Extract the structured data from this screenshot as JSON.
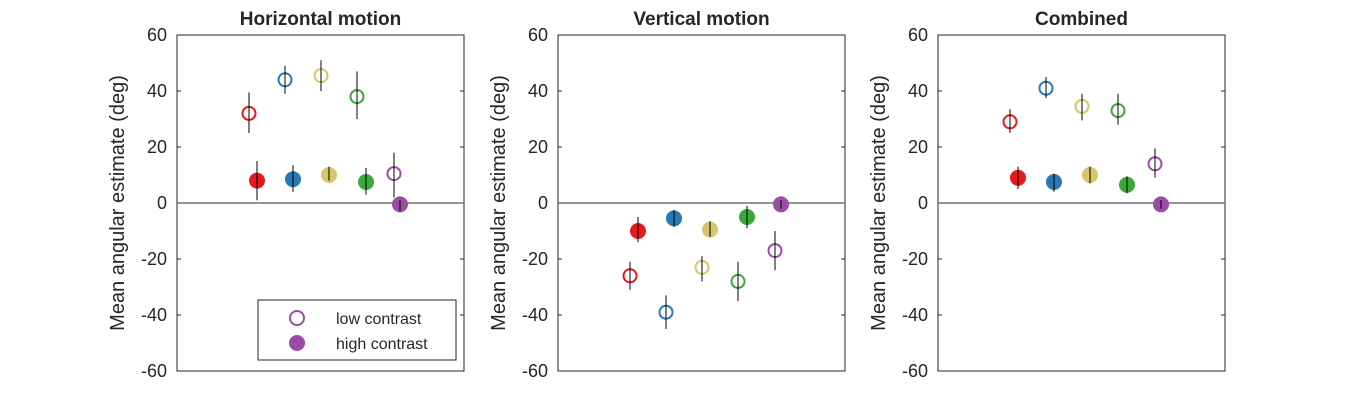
{
  "colors": {
    "red": "#e41a1c",
    "blue": "#2878b5",
    "yellow": "#d4c66a",
    "green": "#3aa83a",
    "purple": "#984ea3",
    "axis": "#262626",
    "zeroline": "#707070"
  },
  "legend": {
    "placement": "bottom-right",
    "low_label": "low contrast",
    "high_label": "high contrast"
  },
  "chart_data": [
    {
      "type": "scatter",
      "title": "Horizontal motion",
      "xlabel": "",
      "ylabel": "Mean angular estimate (deg)",
      "ylim": [
        -60,
        60
      ],
      "yticks": [
        "60",
        "40",
        "20",
        "0",
        "-20",
        "-40",
        "-60"
      ],
      "zero_line": true,
      "grid": false,
      "groups": [
        "red",
        "blue",
        "yellow",
        "green",
        "purple"
      ],
      "series": [
        {
          "name": "low contrast",
          "values": [
            32,
            44,
            45.5,
            38,
            10.5
          ],
          "err_low": [
            25,
            39,
            40,
            30,
            2
          ],
          "err_high": [
            39.5,
            49,
            51,
            47,
            18
          ]
        },
        {
          "name": "high contrast",
          "values": [
            8,
            8.5,
            10,
            7.5,
            -0.5
          ],
          "err_low": [
            1,
            4,
            8,
            3,
            -3
          ],
          "err_high": [
            15,
            13.5,
            13,
            12.5,
            1
          ]
        }
      ],
      "legend": true
    },
    {
      "type": "scatter",
      "title": "Vertical motion",
      "xlabel": "",
      "ylabel": "Mean angular estimate (deg)",
      "ylim": [
        -60,
        60
      ],
      "yticks": [
        "60",
        "40",
        "20",
        "0",
        "-20",
        "-40",
        "-60"
      ],
      "zero_line": true,
      "grid": false,
      "groups": [
        "red",
        "blue",
        "yellow",
        "green",
        "purple"
      ],
      "series": [
        {
          "name": "low contrast",
          "values": [
            -26,
            -39,
            -23,
            -28,
            -17
          ],
          "err_low": [
            -31,
            -45,
            -28,
            -35,
            -24
          ],
          "err_high": [
            -21,
            -33,
            -19,
            -21,
            -10
          ]
        },
        {
          "name": "high contrast",
          "values": [
            -10,
            -5.5,
            -9.5,
            -5,
            -0.5
          ],
          "err_low": [
            -14,
            -8.5,
            -12,
            -9,
            -2
          ],
          "err_high": [
            -5,
            -2.5,
            -6.5,
            -1,
            1
          ]
        }
      ],
      "legend": false
    },
    {
      "type": "scatter",
      "title": "Combined",
      "xlabel": "",
      "ylabel": "Mean angular estimate (deg)",
      "ylim": [
        -60,
        60
      ],
      "yticks": [
        "60",
        "40",
        "20",
        "0",
        "-20",
        "-40",
        "-60"
      ],
      "zero_line": true,
      "grid": false,
      "groups": [
        "red",
        "blue",
        "yellow",
        "green",
        "purple"
      ],
      "series": [
        {
          "name": "low contrast",
          "values": [
            29,
            41,
            34.5,
            33,
            14
          ],
          "err_low": [
            25,
            37.5,
            29.5,
            28,
            9
          ],
          "err_high": [
            33.5,
            45,
            39,
            39,
            19.5
          ]
        },
        {
          "name": "high contrast",
          "values": [
            9,
            7.5,
            10,
            6.5,
            -0.5
          ],
          "err_low": [
            5,
            4,
            7,
            3.5,
            -2
          ],
          "err_high": [
            13,
            10.5,
            13,
            9.5,
            1
          ]
        }
      ],
      "legend": false
    }
  ]
}
